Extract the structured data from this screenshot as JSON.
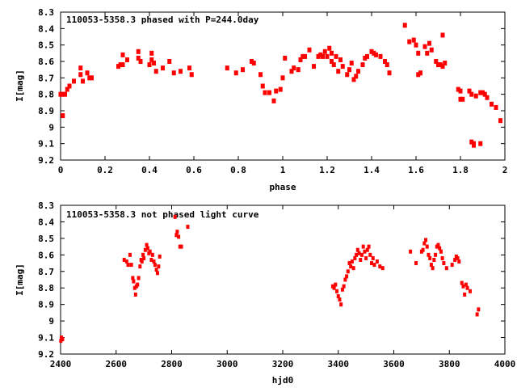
{
  "chart_data": [
    {
      "type": "scatter",
      "title": "110053-5358.3 phased with P=244.0day",
      "xlabel": "phase",
      "ylabel": "I[mag]",
      "xlim": [
        0,
        2
      ],
      "ylim": [
        8.3,
        9.2
      ],
      "y_inverted": true,
      "grid": false,
      "marker_color": "#ff0000",
      "x_ticks": [
        "0",
        "0.2",
        "0.4",
        "0.6",
        "0.8",
        "1",
        "1.2",
        "1.4",
        "1.6",
        "1.8",
        "2"
      ],
      "y_ticks": [
        "8.3",
        "8.4",
        "8.5",
        "8.6",
        "8.7",
        "8.8",
        "8.9",
        "9",
        "9.1",
        "9.2"
      ],
      "points": [
        [
          0.0,
          8.8
        ],
        [
          0.01,
          8.8
        ],
        [
          0.01,
          8.93
        ],
        [
          0.02,
          8.8
        ],
        [
          0.03,
          8.77
        ],
        [
          0.04,
          8.75
        ],
        [
          0.06,
          8.72
        ],
        [
          0.09,
          8.68
        ],
        [
          0.09,
          8.64
        ],
        [
          0.1,
          8.72
        ],
        [
          0.12,
          8.67
        ],
        [
          0.13,
          8.7
        ],
        [
          0.14,
          8.7
        ],
        [
          0.26,
          8.63
        ],
        [
          0.27,
          8.62
        ],
        [
          0.28,
          8.56
        ],
        [
          0.28,
          8.62
        ],
        [
          0.3,
          8.59
        ],
        [
          0.35,
          8.58
        ],
        [
          0.35,
          8.54
        ],
        [
          0.36,
          8.6
        ],
        [
          0.4,
          8.62
        ],
        [
          0.41,
          8.55
        ],
        [
          0.41,
          8.59
        ],
        [
          0.42,
          8.61
        ],
        [
          0.43,
          8.66
        ],
        [
          0.46,
          8.64
        ],
        [
          0.49,
          8.6
        ],
        [
          0.51,
          8.67
        ],
        [
          0.54,
          8.66
        ],
        [
          0.58,
          8.64
        ],
        [
          0.59,
          8.68
        ],
        [
          0.75,
          8.64
        ],
        [
          0.79,
          8.67
        ],
        [
          0.82,
          8.65
        ],
        [
          0.86,
          8.6
        ],
        [
          0.87,
          8.61
        ],
        [
          0.9,
          8.68
        ],
        [
          0.91,
          8.75
        ],
        [
          0.92,
          8.79
        ],
        [
          0.94,
          8.79
        ],
        [
          0.96,
          8.84
        ],
        [
          0.97,
          8.78
        ],
        [
          0.99,
          8.77
        ],
        [
          1.0,
          8.7
        ],
        [
          1.01,
          8.58
        ],
        [
          1.04,
          8.66
        ],
        [
          1.05,
          8.64
        ],
        [
          1.07,
          8.65
        ],
        [
          1.08,
          8.59
        ],
        [
          1.09,
          8.57
        ],
        [
          1.1,
          8.57
        ],
        [
          1.12,
          8.53
        ],
        [
          1.14,
          8.63
        ],
        [
          1.16,
          8.57
        ],
        [
          1.17,
          8.56
        ],
        [
          1.18,
          8.57
        ],
        [
          1.19,
          8.54
        ],
        [
          1.2,
          8.57
        ],
        [
          1.21,
          8.52
        ],
        [
          1.22,
          8.6
        ],
        [
          1.22,
          8.55
        ],
        [
          1.23,
          8.62
        ],
        [
          1.24,
          8.57
        ],
        [
          1.25,
          8.66
        ],
        [
          1.26,
          8.59
        ],
        [
          1.27,
          8.63
        ],
        [
          1.29,
          8.68
        ],
        [
          1.3,
          8.65
        ],
        [
          1.31,
          8.61
        ],
        [
          1.32,
          8.71
        ],
        [
          1.33,
          8.69
        ],
        [
          1.34,
          8.66
        ],
        [
          1.36,
          8.62
        ],
        [
          1.37,
          8.58
        ],
        [
          1.38,
          8.57
        ],
        [
          1.4,
          8.54
        ],
        [
          1.41,
          8.55
        ],
        [
          1.42,
          8.56
        ],
        [
          1.44,
          8.57
        ],
        [
          1.46,
          8.6
        ],
        [
          1.47,
          8.62
        ],
        [
          1.48,
          8.67
        ],
        [
          1.55,
          8.38
        ],
        [
          1.57,
          8.48
        ],
        [
          1.59,
          8.47
        ],
        [
          1.6,
          8.5
        ],
        [
          1.61,
          8.55
        ],
        [
          1.61,
          8.68
        ],
        [
          1.62,
          8.67
        ],
        [
          1.64,
          8.51
        ],
        [
          1.65,
          8.55
        ],
        [
          1.66,
          8.49
        ],
        [
          1.67,
          8.53
        ],
        [
          1.69,
          8.6
        ],
        [
          1.7,
          8.62
        ],
        [
          1.71,
          8.62
        ],
        [
          1.72,
          8.63
        ],
        [
          1.73,
          8.61
        ],
        [
          1.72,
          8.44
        ],
        [
          1.79,
          8.77
        ],
        [
          1.8,
          8.83
        ],
        [
          1.81,
          8.83
        ],
        [
          1.8,
          8.78
        ],
        [
          1.84,
          8.78
        ],
        [
          1.85,
          8.8
        ],
        [
          1.85,
          9.09
        ],
        [
          1.86,
          9.11
        ],
        [
          1.86,
          9.1
        ],
        [
          1.87,
          8.81
        ],
        [
          1.89,
          8.79
        ],
        [
          1.89,
          9.1
        ],
        [
          1.9,
          8.79
        ],
        [
          1.91,
          8.8
        ],
        [
          1.92,
          8.82
        ],
        [
          1.94,
          8.86
        ],
        [
          1.96,
          8.88
        ],
        [
          1.98,
          8.96
        ]
      ]
    },
    {
      "type": "scatter",
      "title": "110053-5358.3 not phased light curve",
      "xlabel": "hjd0",
      "ylabel": "I[mag]",
      "xlim": [
        2400,
        4000
      ],
      "ylim": [
        8.3,
        9.2
      ],
      "y_inverted": true,
      "grid": false,
      "marker_color": "#ff0000",
      "x_ticks": [
        "2400",
        "2600",
        "2800",
        "3000",
        "3200",
        "3400",
        "3600",
        "3800",
        "4000"
      ],
      "y_ticks": [
        "8.3",
        "8.4",
        "8.5",
        "8.6",
        "8.7",
        "8.8",
        "8.9",
        "9",
        "9.1",
        "9.2"
      ],
      "points": [
        [
          2401,
          9.12
        ],
        [
          2403,
          9.1
        ],
        [
          2405,
          9.11
        ],
        [
          2407,
          9.11
        ],
        [
          2629,
          8.63
        ],
        [
          2638,
          8.64
        ],
        [
          2643,
          8.66
        ],
        [
          2650,
          8.6
        ],
        [
          2655,
          8.66
        ],
        [
          2660,
          8.74
        ],
        [
          2663,
          8.76
        ],
        [
          2667,
          8.8
        ],
        [
          2670,
          8.84
        ],
        [
          2673,
          8.79
        ],
        [
          2677,
          8.78
        ],
        [
          2681,
          8.74
        ],
        [
          2686,
          8.67
        ],
        [
          2690,
          8.63
        ],
        [
          2693,
          8.64
        ],
        [
          2697,
          8.6
        ],
        [
          2700,
          8.62
        ],
        [
          2705,
          8.57
        ],
        [
          2710,
          8.54
        ],
        [
          2714,
          8.56
        ],
        [
          2718,
          8.59
        ],
        [
          2722,
          8.58
        ],
        [
          2727,
          8.63
        ],
        [
          2731,
          8.6
        ],
        [
          2736,
          8.64
        ],
        [
          2740,
          8.66
        ],
        [
          2745,
          8.69
        ],
        [
          2749,
          8.71
        ],
        [
          2753,
          8.67
        ],
        [
          2757,
          8.61
        ],
        [
          2812,
          8.37
        ],
        [
          2817,
          8.48
        ],
        [
          2820,
          8.46
        ],
        [
          2825,
          8.49
        ],
        [
          2830,
          8.55
        ],
        [
          2835,
          8.55
        ],
        [
          2858,
          8.43
        ],
        [
          3380,
          8.79
        ],
        [
          3385,
          8.8
        ],
        [
          3390,
          8.78
        ],
        [
          3395,
          8.82
        ],
        [
          3400,
          8.85
        ],
        [
          3405,
          8.87
        ],
        [
          3410,
          8.9
        ],
        [
          3415,
          8.81
        ],
        [
          3420,
          8.79
        ],
        [
          3425,
          8.75
        ],
        [
          3430,
          8.73
        ],
        [
          3435,
          8.7
        ],
        [
          3440,
          8.65
        ],
        [
          3445,
          8.67
        ],
        [
          3450,
          8.64
        ],
        [
          3455,
          8.68
        ],
        [
          3460,
          8.62
        ],
        [
          3465,
          8.6
        ],
        [
          3470,
          8.57
        ],
        [
          3475,
          8.59
        ],
        [
          3480,
          8.63
        ],
        [
          3485,
          8.6
        ],
        [
          3490,
          8.55
        ],
        [
          3495,
          8.58
        ],
        [
          3500,
          8.62
        ],
        [
          3505,
          8.57
        ],
        [
          3510,
          8.55
        ],
        [
          3515,
          8.6
        ],
        [
          3520,
          8.65
        ],
        [
          3525,
          8.62
        ],
        [
          3530,
          8.66
        ],
        [
          3540,
          8.64
        ],
        [
          3550,
          8.67
        ],
        [
          3560,
          8.68
        ],
        [
          3660,
          8.58
        ],
        [
          3680,
          8.65
        ],
        [
          3700,
          8.58
        ],
        [
          3705,
          8.57
        ],
        [
          3710,
          8.53
        ],
        [
          3715,
          8.51
        ],
        [
          3720,
          8.55
        ],
        [
          3725,
          8.6
        ],
        [
          3730,
          8.62
        ],
        [
          3735,
          8.66
        ],
        [
          3740,
          8.68
        ],
        [
          3745,
          8.63
        ],
        [
          3750,
          8.6
        ],
        [
          3755,
          8.55
        ],
        [
          3760,
          8.54
        ],
        [
          3765,
          8.56
        ],
        [
          3770,
          8.58
        ],
        [
          3775,
          8.62
        ],
        [
          3780,
          8.65
        ],
        [
          3790,
          8.68
        ],
        [
          3810,
          8.66
        ],
        [
          3820,
          8.63
        ],
        [
          3825,
          8.61
        ],
        [
          3830,
          8.62
        ],
        [
          3835,
          8.64
        ],
        [
          3845,
          8.77
        ],
        [
          3850,
          8.79
        ],
        [
          3855,
          8.84
        ],
        [
          3860,
          8.78
        ],
        [
          3865,
          8.8
        ],
        [
          3875,
          8.82
        ],
        [
          3900,
          8.96
        ],
        [
          3905,
          8.93
        ]
      ]
    }
  ]
}
